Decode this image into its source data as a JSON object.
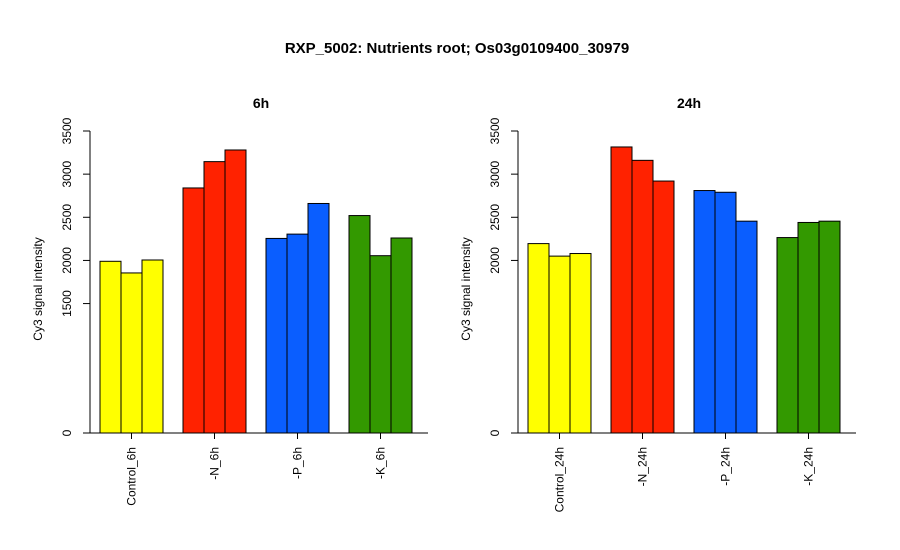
{
  "title": "RXP_5002: Nutrients root; Os03g0109400_30979",
  "chart_data": [
    {
      "type": "bar",
      "title": "6h",
      "ylabel": "Cy3 signal intensity",
      "ylim": [
        0,
        3500
      ],
      "yticks": [
        0,
        1500,
        2000,
        2500,
        3000,
        3500
      ],
      "categories": [
        "Control_6h",
        "-N_6h",
        "-P_6h",
        "-K_6h"
      ],
      "colors": [
        "#ffff00",
        "#ff2200",
        "#0a5eff",
        "#339900"
      ],
      "values": [
        [
          1990,
          1855,
          2005
        ],
        [
          2840,
          3145,
          3280
        ],
        [
          2255,
          2305,
          2660
        ],
        [
          2520,
          2055,
          2260
        ]
      ]
    },
    {
      "type": "bar",
      "title": "24h",
      "ylabel": "Cy3 signal intensity",
      "ylim": [
        0,
        3500
      ],
      "yticks": [
        0,
        2000,
        2500,
        3000,
        3500
      ],
      "categories": [
        "Control_24h",
        "-N_24h",
        "-P_24h",
        "-K_24h"
      ],
      "colors": [
        "#ffff00",
        "#ff2200",
        "#0a5eff",
        "#339900"
      ],
      "values": [
        [
          2195,
          2050,
          2080
        ],
        [
          3315,
          3160,
          2920
        ],
        [
          2810,
          2790,
          2455
        ],
        [
          2265,
          2440,
          2455
        ]
      ]
    }
  ]
}
